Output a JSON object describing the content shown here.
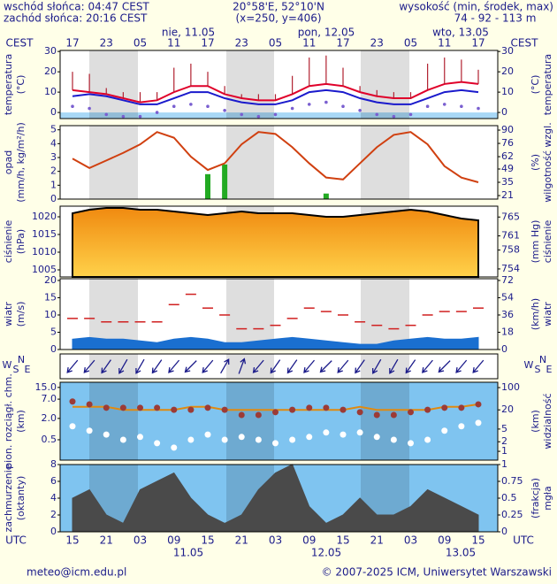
{
  "header": {
    "sunrise": "wschód słońca: 04:47 CEST",
    "sunset": "zachód słońca: 20:16 CEST",
    "coords": "20°58'E, 52°10'N",
    "grid": "(x=250, y=406)",
    "height_title": "wysokość (min, środek, max)",
    "heights": "74 - 92 - 113 m"
  },
  "time": {
    "cest_label": "CEST",
    "utc_label": "UTC",
    "cest_ticks": [
      "17",
      "23",
      "05",
      "11",
      "17",
      "23",
      "05",
      "11",
      "17",
      "23",
      "05",
      "11",
      "17"
    ],
    "utc_ticks": [
      "15",
      "21",
      "03",
      "09",
      "15",
      "21",
      "03",
      "09",
      "15",
      "21",
      "03",
      "09",
      "15"
    ],
    "days_top": [
      "nie, 11.05",
      "pon, 12.05",
      "wto, 13.05"
    ],
    "days_bottom": [
      "11.05",
      "12.05",
      "13.05"
    ]
  },
  "chart_data": [
    {
      "type": "line",
      "left_title": [
        "temperatura",
        "(°C)"
      ],
      "right_title": [
        "(°C)",
        "temperatura"
      ],
      "ylim": [
        -3,
        30.5
      ],
      "yticks": [
        0,
        10,
        20,
        30
      ],
      "y2lim": [
        -3,
        30.5
      ],
      "y2ticks": [
        0,
        10,
        20,
        30
      ],
      "series": [
        {
          "type": "line",
          "color": "#e0002a",
          "values": [
            11,
            10,
            9,
            7,
            5,
            6,
            10,
            13,
            13,
            9,
            7,
            6,
            6,
            9,
            13,
            14,
            13,
            10,
            8,
            7,
            7,
            11,
            14,
            15,
            14
          ]
        },
        {
          "type": "line",
          "color": "#1a1acc",
          "values": [
            8,
            9,
            8,
            6,
            4,
            4,
            7,
            10,
            10,
            7,
            5,
            4,
            4,
            6,
            10,
            11,
            10,
            7,
            5,
            4,
            4,
            7,
            10,
            11,
            10
          ]
        },
        {
          "type": "spikes",
          "color": "#b02030",
          "values": [
            20,
            19,
            12,
            10,
            10,
            10,
            22,
            24,
            20,
            13,
            9,
            9,
            9,
            18,
            27,
            28,
            22,
            13,
            11,
            10,
            10,
            24,
            27,
            26,
            21
          ]
        },
        {
          "type": "dots",
          "color": "#7a5fd0",
          "values": [
            3,
            2,
            -1,
            -2,
            -2,
            0,
            3,
            4,
            3,
            1,
            -1,
            -2,
            -1,
            2,
            4,
            5,
            3,
            1,
            -1,
            -2,
            -1,
            3,
            4,
            3,
            2
          ]
        }
      ]
    },
    {
      "type": "line",
      "left_title": [
        "opad",
        "(mm/h, kg/m²/h)"
      ],
      "right_title": [
        "(%)",
        "wilgotność wzgl."
      ],
      "ylim": [
        0,
        5.3
      ],
      "yticks": [
        0,
        1,
        2,
        3,
        4,
        5
      ],
      "y2lim": [
        17.3,
        94.7
      ],
      "y2ticks": [
        21,
        35,
        49,
        62,
        76,
        90
      ],
      "series": [
        {
          "type": "bars",
          "color": "#22aa22",
          "values": [
            0,
            0,
            0,
            0,
            0,
            0,
            0,
            0,
            1.8,
            2.5,
            0,
            0,
            0,
            0,
            0,
            0.4,
            0,
            0,
            0,
            0,
            0,
            0,
            0,
            0,
            0
          ]
        },
        {
          "type": "line",
          "color": "#d04010",
          "axis": "y2",
          "values": [
            60,
            50,
            58,
            66,
            75,
            88,
            82,
            62,
            48,
            55,
            75,
            88,
            86,
            72,
            55,
            40,
            38,
            55,
            72,
            85,
            88,
            75,
            52,
            40,
            35
          ]
        }
      ]
    },
    {
      "type": "area",
      "left_title": [
        "ciśnienie",
        "(hPa)"
      ],
      "right_title": [
        "(mm Hg)",
        "ciśnienie"
      ],
      "ylim": [
        1003,
        1023
      ],
      "yticks": [
        1005,
        1010,
        1015,
        1020
      ],
      "y2lim": [
        752.3,
        767.3
      ],
      "y2ticks": [
        754,
        758,
        761,
        765
      ],
      "series": [
        {
          "type": "area",
          "color": "#f2a020",
          "values": [
            1021,
            1022,
            1022.5,
            1022.5,
            1022,
            1022,
            1021.5,
            1021,
            1020.5,
            1021,
            1021.5,
            1021,
            1021,
            1021,
            1020.5,
            1020,
            1020,
            1020.5,
            1021,
            1021.5,
            1022,
            1021.5,
            1020.5,
            1019.5,
            1019
          ]
        }
      ]
    },
    {
      "type": "area",
      "left_title": [
        "wiatr",
        "(m/s)"
      ],
      "right_title": [
        "(km/h)",
        "wiatr"
      ],
      "ylim": [
        0,
        20.5
      ],
      "yticks": [
        0,
        5,
        10,
        15,
        20
      ],
      "y2lim": [
        0,
        73.8
      ],
      "y2ticks": [
        0,
        18,
        36,
        54,
        72
      ],
      "series": [
        {
          "type": "area",
          "color": "#1a6fd0",
          "values": [
            3,
            3.5,
            3,
            3,
            2.5,
            2,
            3,
            3.5,
            3,
            2,
            2,
            2.5,
            3,
            3.5,
            3,
            2.5,
            2,
            1.5,
            1.5,
            2.5,
            3,
            3.5,
            3,
            3,
            3.5
          ]
        },
        {
          "type": "dashes",
          "color": "#d02020",
          "values": [
            9,
            9,
            8,
            8,
            8,
            8,
            13,
            16,
            12,
            10,
            6,
            6,
            7,
            9,
            12,
            11,
            10,
            8,
            7,
            6,
            7,
            10,
            11,
            11,
            12
          ]
        }
      ]
    },
    {
      "type": "arrows",
      "compass": [
        "W",
        "S",
        "N",
        "E"
      ],
      "series": [
        {
          "type": "arrows",
          "color": "#1b1b8a",
          "values": [
            40,
            40,
            35,
            30,
            30,
            35,
            40,
            45,
            40,
            210,
            200,
            40,
            35,
            35,
            40,
            45,
            40,
            35,
            30,
            30,
            35,
            40,
            45,
            40,
            40
          ]
        }
      ]
    },
    {
      "type": "line",
      "log_scale": true,
      "left_title": [
        "pion. rozciągł. chm.",
        "(km)"
      ],
      "right_title": [
        "(km)",
        "widzialność"
      ],
      "ylim": [
        0.133,
        21
      ],
      "yticks": [
        {
          "value": 0.5,
          "label": "0.5"
        },
        {
          "value": 2,
          "label": "2.0"
        },
        {
          "value": 7,
          "label": "7.0"
        },
        {
          "value": 15,
          "label": "15.0"
        }
      ],
      "y2lim": [
        0.53,
        147
      ],
      "y2ticks": [
        1,
        2,
        5,
        20,
        100
      ],
      "series": [
        {
          "type": "line",
          "color": "#e08a10",
          "axis": "y2",
          "values": [
            25,
            25,
            25,
            20,
            20,
            20,
            20,
            25,
            25,
            20,
            20,
            20,
            20,
            20,
            20,
            20,
            20,
            25,
            20,
            20,
            20,
            20,
            25,
            25,
            30
          ]
        },
        {
          "type": "dots",
          "color": "#9c3b36",
          "values": [
            6,
            5,
            4,
            4,
            4,
            4,
            3.5,
            3.5,
            4,
            3.5,
            2.5,
            2.5,
            3,
            3.5,
            4,
            4,
            3.5,
            3,
            2.5,
            2.5,
            3,
            3.5,
            4,
            4,
            5
          ]
        },
        {
          "type": "dots",
          "color": "#ffffff",
          "values": [
            1.2,
            0.9,
            0.7,
            0.5,
            0.6,
            0.4,
            0.3,
            0.5,
            0.7,
            0.5,
            0.6,
            0.5,
            0.4,
            0.5,
            0.6,
            0.8,
            0.7,
            0.8,
            0.6,
            0.5,
            0.4,
            0.5,
            0.9,
            1.2,
            1.5
          ]
        }
      ]
    },
    {
      "type": "area",
      "left_title": [
        "zachmurzenie",
        "(oktanty)"
      ],
      "right_title": [
        "(frakcja)",
        "mgła"
      ],
      "ylim": [
        0,
        8
      ],
      "yticks": [
        0,
        2,
        4,
        6,
        8
      ],
      "y2lim": [
        0,
        1
      ],
      "y2ticks": [
        0,
        0.25,
        0.5,
        0.75,
        1
      ],
      "series": [
        {
          "type": "area",
          "color": "#4a4a4a",
          "values": [
            4,
            5,
            2,
            1,
            5,
            6,
            7,
            4,
            2,
            1,
            2,
            5,
            7,
            8,
            3,
            1,
            2,
            4,
            2,
            2,
            3,
            5,
            4,
            3,
            2
          ]
        }
      ]
    }
  ],
  "footer": {
    "email": "meteo@icm.edu.pl",
    "copyright": "© 2007-2025 ICM, Uniwersytet Warszawski"
  }
}
